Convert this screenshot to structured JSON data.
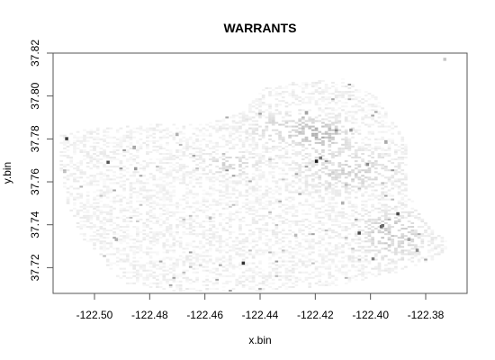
{
  "chart_data": {
    "type": "heatmap",
    "title": "WARRANTS",
    "xlabel": "x.bin",
    "ylabel": "y.bin",
    "xlim": [
      -122.515,
      -122.365
    ],
    "ylim": [
      37.708,
      37.82
    ],
    "x_ticks": [
      -122.5,
      -122.48,
      -122.46,
      -122.44,
      -122.42,
      -122.4,
      -122.38
    ],
    "x_tick_labels": [
      "-122.50",
      "-122.48",
      "-122.46",
      "-122.44",
      "-122.42",
      "-122.40",
      "-122.38"
    ],
    "y_ticks": [
      37.72,
      37.74,
      37.76,
      37.78,
      37.8,
      37.82
    ],
    "y_tick_labels": [
      "37.72",
      "37.74",
      "37.76",
      "37.78",
      "37.80",
      "37.82"
    ],
    "grid": false,
    "color_scale": {
      "low": "#ffffff",
      "high": "#000000"
    },
    "density_regions": [
      {
        "center": [
          -122.418,
          37.782
        ],
        "spread": [
          0.006,
          0.004
        ],
        "intensity": 0.22
      },
      {
        "center": [
          -122.408,
          37.765
        ],
        "spread": [
          0.01,
          0.006
        ],
        "intensity": 0.14
      },
      {
        "center": [
          -122.392,
          37.735
        ],
        "spread": [
          0.007,
          0.007
        ],
        "intensity": 0.16
      },
      {
        "center": [
          -122.45,
          37.768
        ],
        "spread": [
          0.006,
          0.003
        ],
        "intensity": 0.12
      },
      {
        "center": [
          -122.43,
          37.785
        ],
        "spread": [
          0.01,
          0.005
        ],
        "intensity": 0.1
      }
    ],
    "hotspots": [
      {
        "x": -122.51,
        "y": 37.78,
        "value": 0.85
      },
      {
        "x": -122.495,
        "y": 37.769,
        "value": 0.75
      },
      {
        "x": -122.485,
        "y": 37.766,
        "value": 0.45
      },
      {
        "x": -122.47,
        "y": 37.782,
        "value": 0.35
      },
      {
        "x": -122.4195,
        "y": 37.7695,
        "value": 1.0
      },
      {
        "x": -122.418,
        "y": 37.771,
        "value": 0.6
      },
      {
        "x": -122.407,
        "y": 37.784,
        "value": 0.45
      },
      {
        "x": -122.401,
        "y": 37.768,
        "value": 0.5
      },
      {
        "x": -122.404,
        "y": 37.736,
        "value": 0.8
      },
      {
        "x": -122.396,
        "y": 37.739,
        "value": 0.7
      },
      {
        "x": -122.3955,
        "y": 37.7395,
        "value": 0.65
      },
      {
        "x": -122.39,
        "y": 37.745,
        "value": 0.8
      },
      {
        "x": -122.386,
        "y": 37.733,
        "value": 0.4
      },
      {
        "x": -122.383,
        "y": 37.728,
        "value": 0.5
      },
      {
        "x": -122.399,
        "y": 37.724,
        "value": 0.55
      },
      {
        "x": -122.446,
        "y": 37.722,
        "value": 0.9
      },
      {
        "x": -122.492,
        "y": 37.733,
        "value": 0.35
      },
      {
        "x": -122.458,
        "y": 37.743,
        "value": 0.3
      },
      {
        "x": -122.427,
        "y": 37.735,
        "value": 0.3
      },
      {
        "x": -122.41,
        "y": 37.75,
        "value": 0.35
      },
      {
        "x": -122.373,
        "y": 37.817,
        "value": 0.25
      }
    ]
  }
}
